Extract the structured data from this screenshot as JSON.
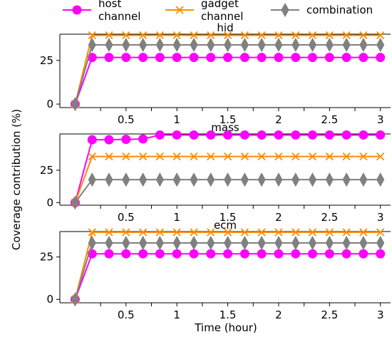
{
  "chart_data": {
    "type": "line",
    "xlabel": "Time (hour)",
    "ylabel": "Coverage contribution (%)",
    "x": [
      0,
      0.167,
      0.333,
      0.5,
      0.667,
      0.833,
      1.0,
      1.167,
      1.333,
      1.5,
      1.667,
      1.833,
      2.0,
      2.167,
      2.333,
      2.5,
      2.667,
      2.833,
      3.0
    ],
    "xlim": [
      -0.15,
      3.1
    ],
    "xticks": [
      0.5,
      1,
      1.5,
      2,
      2.5,
      3
    ],
    "xtick_labels": [
      "0.5",
      "1",
      "1.5",
      "2",
      "2.5",
      "3"
    ],
    "legend": {
      "placement": "top",
      "entries": [
        {
          "label_lines": [
            "host",
            "channel"
          ],
          "color": "#ff00ff",
          "marker": "circle"
        },
        {
          "label_lines": [
            "gadget",
            "channel"
          ],
          "color": "#ff8c00",
          "marker": "x"
        },
        {
          "label_lines": [
            "combination"
          ],
          "color": "#808080",
          "marker": "thin-diamond"
        }
      ]
    },
    "subplots": [
      {
        "title": "hid",
        "ylim": [
          -2,
          40
        ],
        "yticks": [
          0,
          25
        ],
        "series": [
          {
            "color": "#ff00ff",
            "marker": "circle",
            "values": [
              0,
              26.7,
              26.7,
              26.7,
              26.7,
              26.7,
              26.7,
              26.7,
              26.7,
              26.7,
              26.7,
              26.7,
              26.7,
              26.7,
              26.7,
              26.7,
              26.7,
              26.7,
              26.7
            ]
          },
          {
            "color": "#ff8c00",
            "marker": "x",
            "values": [
              0,
              39.4,
              39.4,
              39.4,
              39.4,
              39.4,
              39.4,
              39.4,
              39.4,
              39.4,
              39.4,
              39.4,
              39.4,
              39.4,
              39.4,
              39.4,
              39.4,
              39.4,
              39.4
            ]
          },
          {
            "color": "#808080",
            "marker": "thin-diamond",
            "values": [
              0,
              33.9,
              33.9,
              33.9,
              33.9,
              33.9,
              33.9,
              33.9,
              33.9,
              33.9,
              33.9,
              33.9,
              33.9,
              33.9,
              33.9,
              33.9,
              33.9,
              33.9,
              33.9
            ]
          }
        ]
      },
      {
        "title": "mass",
        "ylim": [
          -2,
          53
        ],
        "yticks": [
          0,
          25
        ],
        "series": [
          {
            "color": "#ff00ff",
            "marker": "circle",
            "values": [
              0,
              48.5,
              48.5,
              48.8,
              49.1,
              52.2,
              52.2,
              52.2,
              52.2,
              52.2,
              52.2,
              52.2,
              52.2,
              52.2,
              52.2,
              52.2,
              52.2,
              52.2,
              52.2
            ]
          },
          {
            "color": "#ff8c00",
            "marker": "x",
            "values": [
              0,
              35.6,
              35.6,
              35.6,
              35.6,
              35.6,
              35.6,
              35.6,
              35.6,
              35.6,
              35.6,
              35.6,
              35.6,
              35.6,
              35.6,
              35.6,
              35.6,
              35.6,
              35.6
            ]
          },
          {
            "color": "#808080",
            "marker": "thin-diamond",
            "values": [
              0,
              17.7,
              17.7,
              17.7,
              17.7,
              17.7,
              17.7,
              17.7,
              17.7,
              17.7,
              17.7,
              17.7,
              17.7,
              17.7,
              17.7,
              17.7,
              17.7,
              17.7,
              17.7
            ]
          }
        ]
      },
      {
        "title": "ecm",
        "ylim": [
          -2,
          40
        ],
        "yticks": [
          0,
          25
        ],
        "series": [
          {
            "color": "#ff00ff",
            "marker": "circle",
            "values": [
              0,
              26.9,
              26.9,
              26.9,
              26.9,
              26.9,
              26.9,
              26.9,
              26.9,
              26.9,
              26.9,
              26.9,
              26.9,
              26.9,
              26.9,
              26.9,
              26.9,
              26.9,
              26.9
            ]
          },
          {
            "color": "#ff8c00",
            "marker": "x",
            "values": [
              0,
              39.6,
              39.6,
              39.6,
              39.6,
              39.6,
              39.6,
              39.6,
              39.6,
              39.6,
              39.6,
              39.6,
              39.6,
              39.6,
              39.6,
              39.6,
              39.6,
              39.6,
              39.6
            ]
          },
          {
            "color": "#808080",
            "marker": "thin-diamond",
            "values": [
              0,
              33.3,
              33.3,
              33.3,
              33.3,
              33.3,
              33.3,
              33.3,
              33.3,
              33.3,
              33.3,
              33.3,
              33.3,
              33.3,
              33.3,
              33.3,
              33.3,
              33.3,
              33.3
            ]
          }
        ]
      }
    ]
  }
}
